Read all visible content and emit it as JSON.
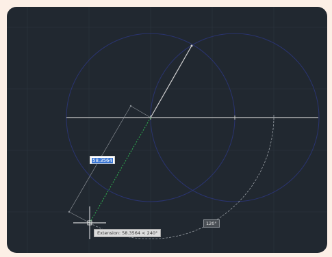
{
  "canvas": {
    "background_color": "#212830",
    "grid_color": "#2c3440",
    "circle_color": "#2a3470",
    "line_color": "#c8c8c8",
    "track_color": "#2fa84f"
  },
  "dynamic_input": {
    "value": "58.3564"
  },
  "tooltip": {
    "text": "Extension: 58.3564 < 240°"
  },
  "angle_label": {
    "text": "120°"
  },
  "cursor": {
    "icon": "crosshair-icon"
  }
}
